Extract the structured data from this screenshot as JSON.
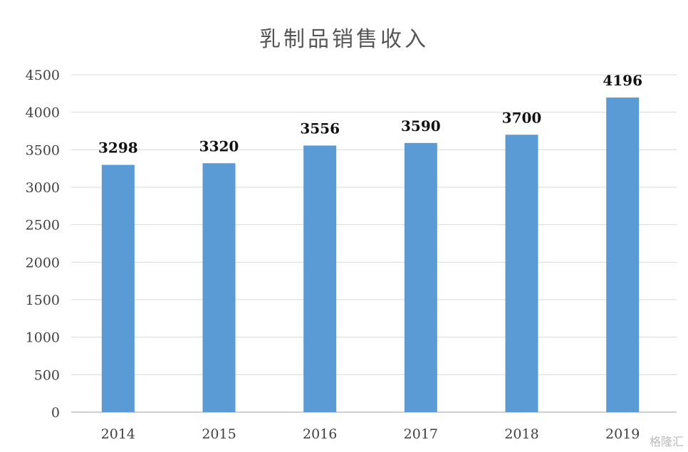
{
  "chart_data": {
    "type": "bar",
    "title": "乳制品销售收入",
    "categories": [
      "2014",
      "2015",
      "2016",
      "2017",
      "2018",
      "2019"
    ],
    "values": [
      3298,
      3320,
      3556,
      3590,
      3700,
      4196
    ],
    "ylim": [
      0,
      4500
    ],
    "yticks": [
      0,
      500,
      1000,
      1500,
      2000,
      2500,
      3000,
      3500,
      4000,
      4500
    ],
    "grid": true,
    "bar_color": "#5B9BD5",
    "data_labels": true
  },
  "watermark": "格隆汇"
}
